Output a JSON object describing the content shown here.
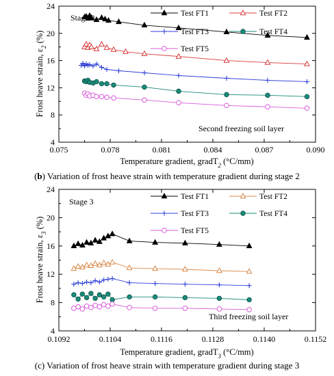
{
  "chart_data": [
    {
      "type": "line",
      "panel_letter": "b",
      "caption": "Variation of frost heave strain with temperature gradient during stage 2",
      "stage_label": "Stage 2",
      "annotation": "Second freezing soil layer",
      "xlabel": "Temperature gradient, gradT",
      "xlabel_sub": "2",
      "xlabel_unit": " (°C/mm)",
      "ylabel": "Frost heave strain, ε",
      "ylabel_sub": "2",
      "ylabel_unit": " (%)",
      "xlim": [
        0.075,
        0.09
      ],
      "ylim": [
        4,
        24
      ],
      "xticks": [
        0.075,
        0.078,
        0.081,
        0.084,
        0.087,
        0.09
      ],
      "xtick_labels": [
        "0.075",
        "0.078",
        "0.081",
        "0.084",
        "0.087",
        "0.090"
      ],
      "yticks": [
        4,
        8,
        12,
        16,
        20,
        24
      ],
      "ytick_labels": [
        "4",
        "8",
        "12",
        "16",
        "20",
        "24"
      ],
      "series": [
        {
          "name": "Test FT1",
          "color": "#000000",
          "marker": "triangle-filled",
          "x": [
            0.0765,
            0.0766,
            0.0767,
            0.0768,
            0.0769,
            0.0772,
            0.0775,
            0.0777,
            0.0779,
            0.0785,
            0.08,
            0.082,
            0.0848,
            0.0872,
            0.0895
          ],
          "y": [
            22.4,
            22.5,
            22.2,
            22.6,
            22.3,
            22.0,
            22.3,
            22.1,
            21.9,
            21.7,
            21.2,
            20.8,
            20.2,
            19.7,
            19.4
          ]
        },
        {
          "name": "Test FT2",
          "color": "#d93a3a",
          "marker": "triangle-open",
          "x": [
            0.0765,
            0.0766,
            0.0767,
            0.0768,
            0.0769,
            0.0772,
            0.0775,
            0.0778,
            0.0782,
            0.0789,
            0.08,
            0.082,
            0.0848,
            0.0872,
            0.0895
          ],
          "y": [
            18.0,
            18.4,
            17.9,
            18.3,
            18.0,
            17.7,
            18.4,
            17.9,
            17.6,
            17.3,
            17.0,
            16.6,
            16.0,
            15.7,
            15.5
          ]
        },
        {
          "name": "Test FT3",
          "color": "#2f3fd8",
          "marker": "plus",
          "x": [
            0.0763,
            0.0764,
            0.0765,
            0.0766,
            0.0767,
            0.0768,
            0.077,
            0.0772,
            0.0775,
            0.0778,
            0.0785,
            0.08,
            0.082,
            0.0848,
            0.0872,
            0.0895
          ],
          "y": [
            15.3,
            15.6,
            15.2,
            15.5,
            15.3,
            15.4,
            15.2,
            15.5,
            15.0,
            14.7,
            14.5,
            14.2,
            13.8,
            13.4,
            13.1,
            12.9
          ]
        },
        {
          "name": "Test FT4",
          "color": "#1a8a7a",
          "marker": "circle-filled",
          "x": [
            0.0765,
            0.0766,
            0.0767,
            0.0768,
            0.077,
            0.0772,
            0.0775,
            0.0778,
            0.0782,
            0.08,
            0.082,
            0.0848,
            0.0872,
            0.0895
          ],
          "y": [
            13.0,
            12.9,
            13.1,
            12.8,
            12.7,
            12.9,
            12.6,
            12.6,
            12.4,
            12.1,
            11.5,
            11.0,
            10.9,
            10.7
          ]
        },
        {
          "name": "Test FT5",
          "color": "#d85bd8",
          "marker": "circle-open",
          "x": [
            0.0765,
            0.0766,
            0.0767,
            0.0768,
            0.077,
            0.0772,
            0.0775,
            0.0778,
            0.0782,
            0.08,
            0.082,
            0.0848,
            0.0872,
            0.0895
          ],
          "y": [
            11.2,
            10.9,
            11.1,
            10.8,
            10.9,
            10.7,
            10.7,
            10.6,
            10.5,
            10.2,
            9.8,
            9.4,
            9.2,
            9.0
          ]
        }
      ]
    },
    {
      "type": "line",
      "panel_letter": "c",
      "caption": "Variation of frost heave strain with temperature gradient during stage 3",
      "stage_label": "Stage 3",
      "annotation": "Third freezing soil layer",
      "xlabel": "Temperature gradient, gradT",
      "xlabel_sub": "3",
      "xlabel_unit": " (°C/mm)",
      "ylabel": "Frost heave strain, ε",
      "ylabel_sub": "3",
      "ylabel_unit": " (%)",
      "xlim": [
        0.1092,
        0.1152
      ],
      "ylim": [
        4,
        24
      ],
      "xticks": [
        0.1092,
        0.1104,
        0.1116,
        0.1128,
        0.114,
        0.1152
      ],
      "xtick_labels": [
        "0.1092",
        "0.1104",
        "0.1116",
        "0.1128",
        "0.1140",
        "0.1152"
      ],
      "yticks": [
        4,
        8,
        12,
        16,
        20,
        24
      ],
      "ytick_labels": [
        "4",
        "8",
        "12",
        "16",
        "20",
        "24"
      ],
      "series": [
        {
          "name": "Test FT1",
          "color": "#000000",
          "marker": "triangle-filled",
          "x": [
            0.10955,
            0.10965,
            0.10975,
            0.10985,
            0.10995,
            0.11005,
            0.11015,
            0.11025,
            0.11035,
            0.11045,
            0.11085,
            0.11145,
            0.11215,
            0.11295,
            0.11365
          ],
          "y": [
            16.0,
            16.3,
            16.1,
            16.5,
            16.4,
            16.8,
            16.6,
            17.1,
            17.4,
            17.7,
            16.7,
            16.5,
            16.4,
            16.2,
            16.0
          ]
        },
        {
          "name": "Test FT2",
          "color": "#d98a4a",
          "marker": "triangle-open",
          "x": [
            0.10955,
            0.10965,
            0.10975,
            0.10985,
            0.10995,
            0.11005,
            0.11015,
            0.11025,
            0.11035,
            0.11045,
            0.11085,
            0.11145,
            0.11215,
            0.11295,
            0.11365
          ],
          "y": [
            12.8,
            13.1,
            13.0,
            13.3,
            13.2,
            13.5,
            13.3,
            13.6,
            13.4,
            13.7,
            12.9,
            12.8,
            12.7,
            12.5,
            12.4
          ]
        },
        {
          "name": "Test FT3",
          "color": "#2f3fd8",
          "marker": "plus",
          "x": [
            0.10955,
            0.10965,
            0.10975,
            0.10985,
            0.10995,
            0.11005,
            0.11015,
            0.11025,
            0.11035,
            0.11045,
            0.11085,
            0.11145,
            0.11215,
            0.11295,
            0.11365
          ],
          "y": [
            10.6,
            10.8,
            10.7,
            10.9,
            10.8,
            11.1,
            10.9,
            11.2,
            11.3,
            11.4,
            10.8,
            10.7,
            10.6,
            10.5,
            10.4
          ]
        },
        {
          "name": "Test FT4",
          "color": "#1a8a7a",
          "marker": "circle-filled",
          "x": [
            0.10955,
            0.10965,
            0.10975,
            0.10985,
            0.10995,
            0.11005,
            0.11015,
            0.11025,
            0.11035,
            0.11045,
            0.11085,
            0.11145,
            0.11215,
            0.11295,
            0.11365
          ],
          "y": [
            9.1,
            8.5,
            9.2,
            8.7,
            9.3,
            8.6,
            9.1,
            8.8,
            9.2,
            8.4,
            8.8,
            8.8,
            8.7,
            8.6,
            8.4
          ]
        },
        {
          "name": "Test FT5",
          "color": "#d85bd8",
          "marker": "circle-open",
          "x": [
            0.10955,
            0.10965,
            0.10975,
            0.10985,
            0.10995,
            0.11005,
            0.11015,
            0.11025,
            0.11035,
            0.11045,
            0.11085,
            0.11145,
            0.11215,
            0.11295,
            0.11365
          ],
          "y": [
            7.2,
            7.4,
            7.1,
            7.5,
            7.3,
            7.6,
            7.4,
            7.7,
            7.5,
            7.8,
            7.3,
            7.2,
            7.2,
            7.1,
            7.0
          ]
        }
      ]
    }
  ]
}
